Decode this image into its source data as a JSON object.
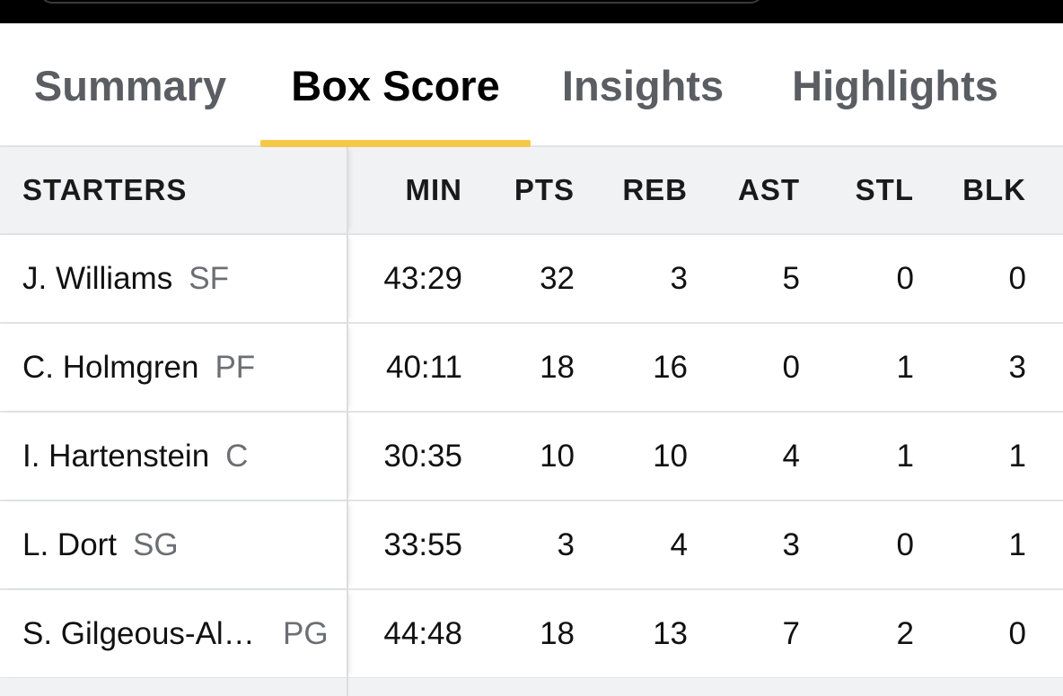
{
  "tabs": [
    {
      "label": "Summary",
      "active": false
    },
    {
      "label": "Box Score",
      "active": true
    },
    {
      "label": "Insights",
      "active": false
    },
    {
      "label": "Highlights",
      "active": false
    }
  ],
  "accent_color": "#f7c948",
  "table": {
    "section_label": "STARTERS",
    "columns": [
      "MIN",
      "PTS",
      "REB",
      "AST",
      "STL",
      "BLK"
    ],
    "rows": [
      {
        "name": "J. Williams",
        "pos": "SF",
        "stats": [
          "43:29",
          "32",
          "3",
          "5",
          "0",
          "0"
        ]
      },
      {
        "name": "C. Holmgren",
        "pos": "PF",
        "stats": [
          "40:11",
          "18",
          "16",
          "0",
          "1",
          "3"
        ]
      },
      {
        "name": "I. Hartenstein",
        "pos": "C",
        "stats": [
          "30:35",
          "10",
          "10",
          "4",
          "1",
          "1"
        ]
      },
      {
        "name": "L. Dort",
        "pos": "SG",
        "stats": [
          "33:55",
          "3",
          "4",
          "3",
          "0",
          "1"
        ]
      },
      {
        "name": "S. Gilgeous-Alexander",
        "pos": "PG",
        "stats": [
          "44:48",
          "18",
          "13",
          "7",
          "2",
          "0"
        ]
      }
    ]
  }
}
